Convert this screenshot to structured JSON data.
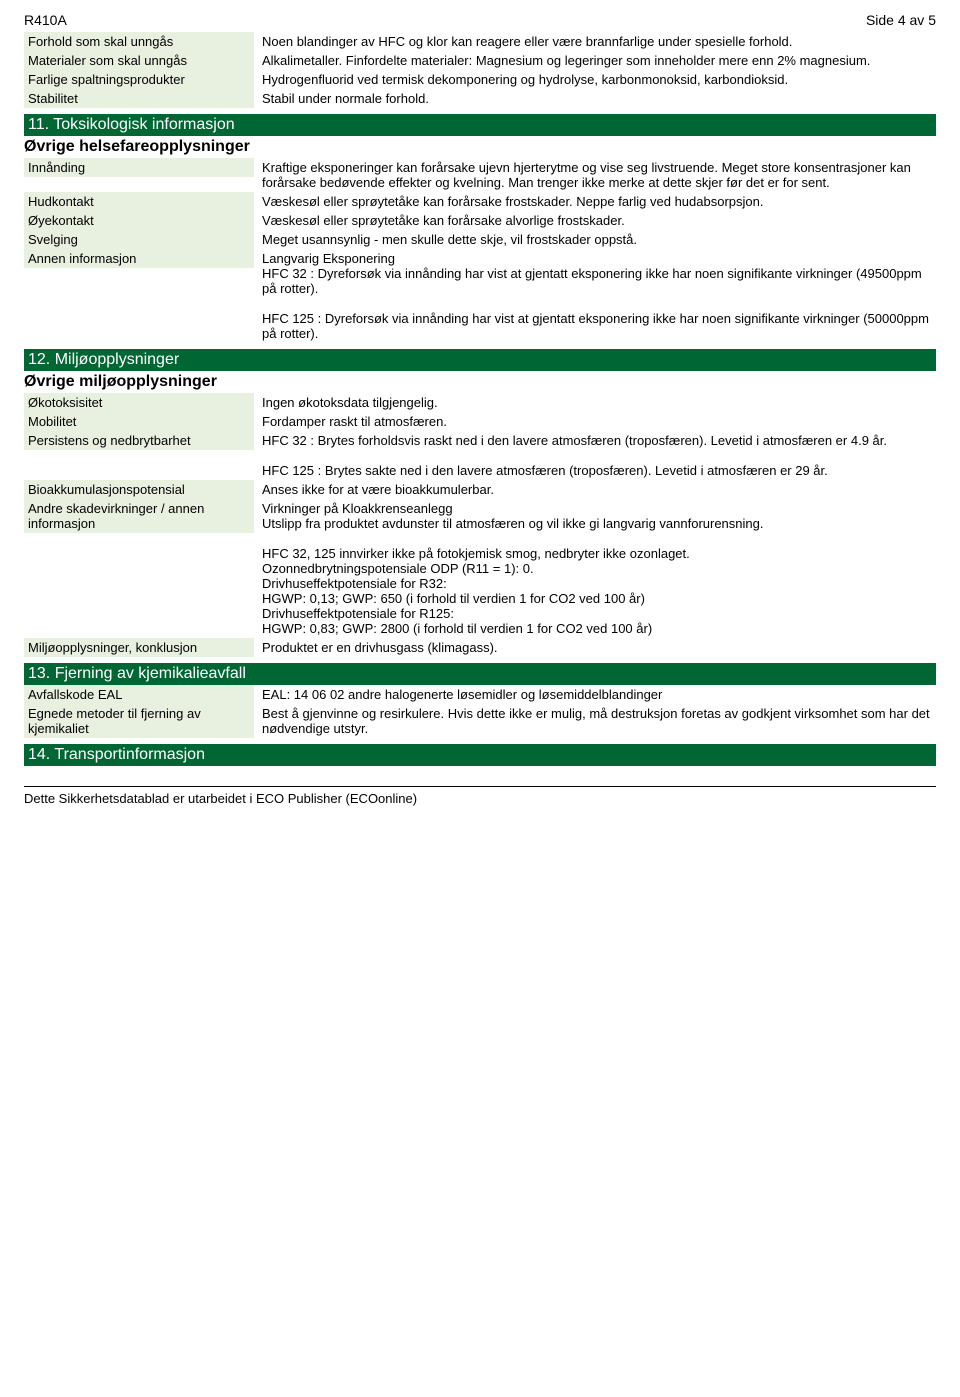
{
  "header": {
    "left": "R410A",
    "right": "Side 4 av 5"
  },
  "section10_rows": [
    {
      "label": "Forhold som skal unngås",
      "value": "Noen blandinger av HFC og klor kan reagere eller være brannfarlige under spesielle forhold."
    },
    {
      "label": "Materialer som skal unngås",
      "value": "Alkalimetaller. Finfordelte materialer: Magnesium og legeringer som inneholder mere enn 2% magnesium."
    },
    {
      "label": "Farlige spaltningsprodukter",
      "value": "Hydrogenfluorid ved termisk dekomponering og hydrolyse, karbonmonoksid, karbondioksid."
    },
    {
      "label": "Stabilitet",
      "value": "Stabil under normale forhold."
    }
  ],
  "section11": {
    "title": "11. Toksikologisk informasjon",
    "subtitle": "Øvrige helsefareopplysninger",
    "rows": [
      {
        "label": "Innånding",
        "value": "Kraftige eksponeringer kan forårsake ujevn hjerterytme og vise seg livstruende. Meget store konsentrasjoner kan forårsake bedøvende effekter og kvelning. Man trenger ikke merke at dette skjer før det er for sent."
      },
      {
        "label": "Hudkontakt",
        "value": "Væskesøl eller sprøytetåke kan forårsake frostskader. Neppe farlig ved hudabsorpsjon."
      },
      {
        "label": "Øyekontakt",
        "value": "Væskesøl eller sprøytetåke kan forårsake alvorlige frostskader."
      },
      {
        "label": "Svelging",
        "value": "Meget usannsynlig - men skulle dette skje, vil frostskader oppstå."
      },
      {
        "label": "Annen informasjon",
        "value": "Langvarig Eksponering\nHFC 32 : Dyreforsøk via innånding har vist at gjentatt eksponering ikke har noen signifikante virkninger (49500ppm på rotter).\n\nHFC 125 : Dyreforsøk via innånding har vist at gjentatt eksponering ikke har noen signifikante virkninger (50000ppm på rotter)."
      }
    ]
  },
  "section12": {
    "title": "12. Miljøopplysninger",
    "subtitle": "Øvrige miljøopplysninger",
    "rows": [
      {
        "label": "Økotoksisitet",
        "value": "Ingen økotoksdata tilgjengelig."
      },
      {
        "label": "Mobilitet",
        "value": "Fordamper raskt til atmosfæren."
      },
      {
        "label": "Persistens og nedbrytbarhet",
        "value": "HFC 32 : Brytes forholdsvis raskt ned i den lavere atmosfæren (troposfæren). Levetid i atmosfæren er 4.9 år.\n\nHFC 125 : Brytes sakte ned i den lavere atmosfæren (troposfæren). Levetid i atmosfæren er 29 år."
      },
      {
        "label": "Bioakkumulasjonspotensial",
        "value": "Anses ikke for at være bioakkumulerbar."
      },
      {
        "label": "Andre skadevirkninger / annen informasjon",
        "value": "Virkninger på Kloakkrenseanlegg\nUtslipp fra produktet avdunster til atmosfæren og vil ikke gi langvarig vannforurensning.\n\nHFC 32, 125 innvirker ikke på fotokjemisk smog, nedbryter ikke ozonlaget.\nOzonnedbrytningspotensiale ODP (R11 = 1): 0.\nDrivhuseffektpotensiale for R32:\nHGWP: 0,13; GWP: 650 (i forhold til verdien 1 for CO2 ved 100 år)\nDrivhuseffektpotensiale for R125:\nHGWP: 0,83; GWP: 2800 (i forhold til verdien 1 for CO2 ved 100 år)"
      },
      {
        "label": "Miljøopplysninger, konklusjon",
        "value": "Produktet er en drivhusgass (klimagass)."
      }
    ]
  },
  "section13": {
    "title": "13. Fjerning av kjemikalieavfall",
    "rows": [
      {
        "label": "Avfallskode EAL",
        "value": "EAL: 14 06 02 andre halogenerte løsemidler og løsemiddelblandinger"
      },
      {
        "label": "Egnede metoder til fjerning av kjemikaliet",
        "value": "Best å gjenvinne og resirkulere. Hvis dette ikke er mulig, må destruksjon foretas av godkjent virksomhet som har det nødvendige utstyr."
      }
    ]
  },
  "section14": {
    "title": "14. Transportinformasjon"
  },
  "footer": "Dette Sikkerhetsdatablad er utarbeidet i ECO Publisher (ECOonline)"
}
